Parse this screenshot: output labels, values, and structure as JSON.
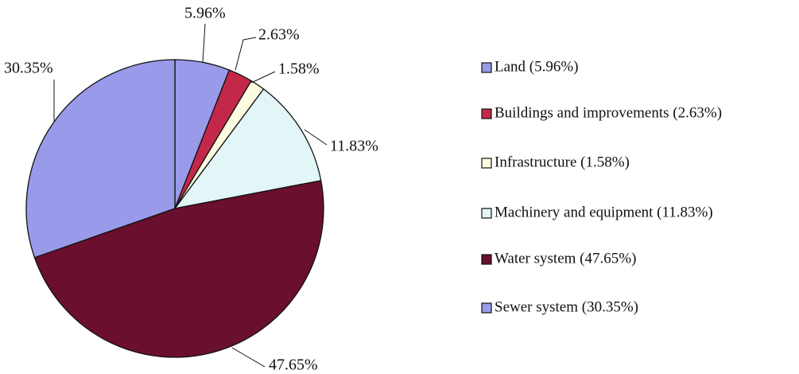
{
  "chart_data": {
    "type": "pie",
    "categories": [
      "Land (5.96%)",
      "Buildings and improvements (2.63%)",
      "Infrastructure (1.58%)",
      "Machinery and equipment (11.83%)",
      "Water system (47.65%)",
      "Sewer system (30.35%)"
    ],
    "values": [
      5.96,
      2.63,
      1.58,
      11.83,
      47.65,
      30.35
    ],
    "value_labels": [
      "5.96%",
      "2.63%",
      "1.58%",
      "11.83%",
      "47.65%",
      "30.35%"
    ],
    "colors": [
      "#9a9aea",
      "#c3284a",
      "#fdfbe0",
      "#e2f6f8",
      "#6a0f2e",
      "#9a9aea"
    ],
    "legend": "right"
  }
}
